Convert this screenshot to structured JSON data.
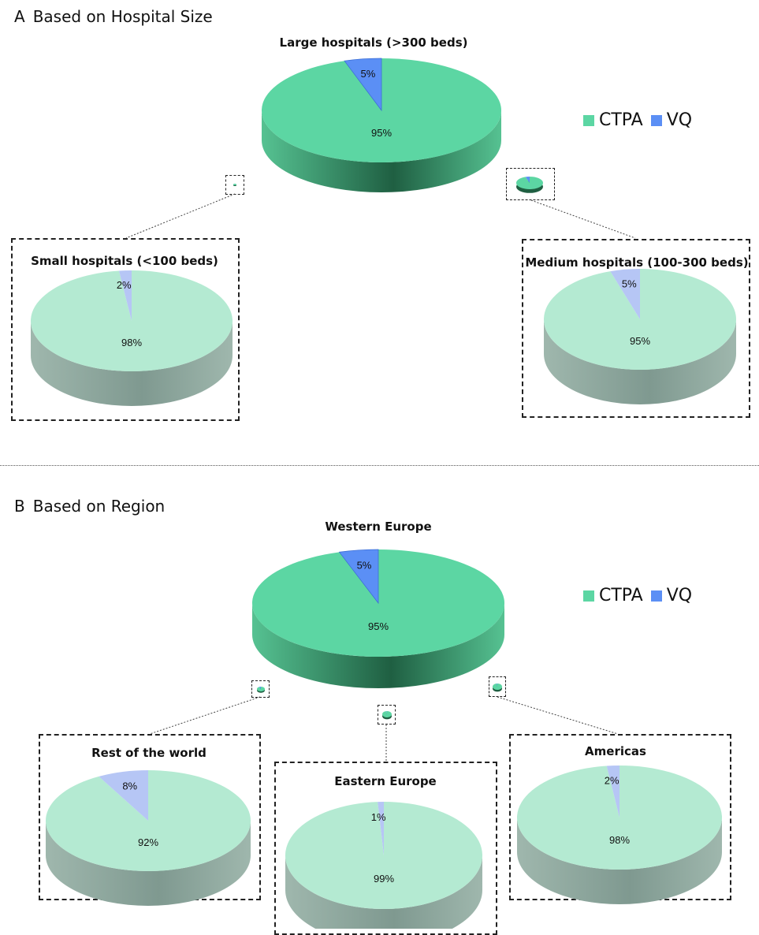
{
  "sections": [
    {
      "letter": "A",
      "title": "Based on Hospital Size"
    },
    {
      "letter": "B",
      "title": "Based on Region"
    }
  ],
  "legend": {
    "items": [
      {
        "label": "CTPA",
        "color": "#5cd6a3"
      },
      {
        "label": "VQ",
        "color": "#5b8ff5"
      }
    ]
  },
  "colors": {
    "ctpa": "#5cd6a3",
    "ctpa_side_dark": "#1f5f42",
    "ctpa_side_light": "#56c292",
    "vq": "#5b8ff5",
    "ctpa_faded": "#b4ead2",
    "ctpa_faded_side": "#9fb7ad",
    "vq_faded": "#b6c6f5"
  },
  "chart_data": [
    {
      "type": "pie",
      "group": "A",
      "title": "Large hospitals (>300 beds)",
      "categories": [
        "CTPA",
        "VQ"
      ],
      "values": [
        95,
        5
      ],
      "labels": [
        "95%",
        "5%"
      ],
      "style": "main"
    },
    {
      "type": "pie",
      "group": "A",
      "title": "Small hospitals (<100 beds)",
      "categories": [
        "CTPA",
        "VQ"
      ],
      "values": [
        98,
        2
      ],
      "labels": [
        "98%",
        "2%"
      ],
      "style": "faded"
    },
    {
      "type": "pie",
      "group": "A",
      "title": "Medium hospitals (100-300 beds)",
      "categories": [
        "CTPA",
        "VQ"
      ],
      "values": [
        95,
        5
      ],
      "labels": [
        "95%",
        "5%"
      ],
      "style": "faded"
    },
    {
      "type": "pie",
      "group": "B",
      "title": "Western Europe",
      "categories": [
        "CTPA",
        "VQ"
      ],
      "values": [
        95,
        5
      ],
      "labels": [
        "95%",
        "5%"
      ],
      "style": "main"
    },
    {
      "type": "pie",
      "group": "B",
      "title": "Rest of the world",
      "categories": [
        "CTPA",
        "VQ"
      ],
      "values": [
        92,
        8
      ],
      "labels": [
        "92%",
        "8%"
      ],
      "style": "faded"
    },
    {
      "type": "pie",
      "group": "B",
      "title": "Eastern Europe",
      "categories": [
        "CTPA",
        "VQ"
      ],
      "values": [
        99,
        1
      ],
      "labels": [
        "99%",
        "1%"
      ],
      "style": "faded"
    },
    {
      "type": "pie",
      "group": "B",
      "title": "Americas",
      "categories": [
        "CTPA",
        "VQ"
      ],
      "values": [
        98,
        2
      ],
      "labels": [
        "98%",
        "2%"
      ],
      "style": "faded"
    }
  ]
}
